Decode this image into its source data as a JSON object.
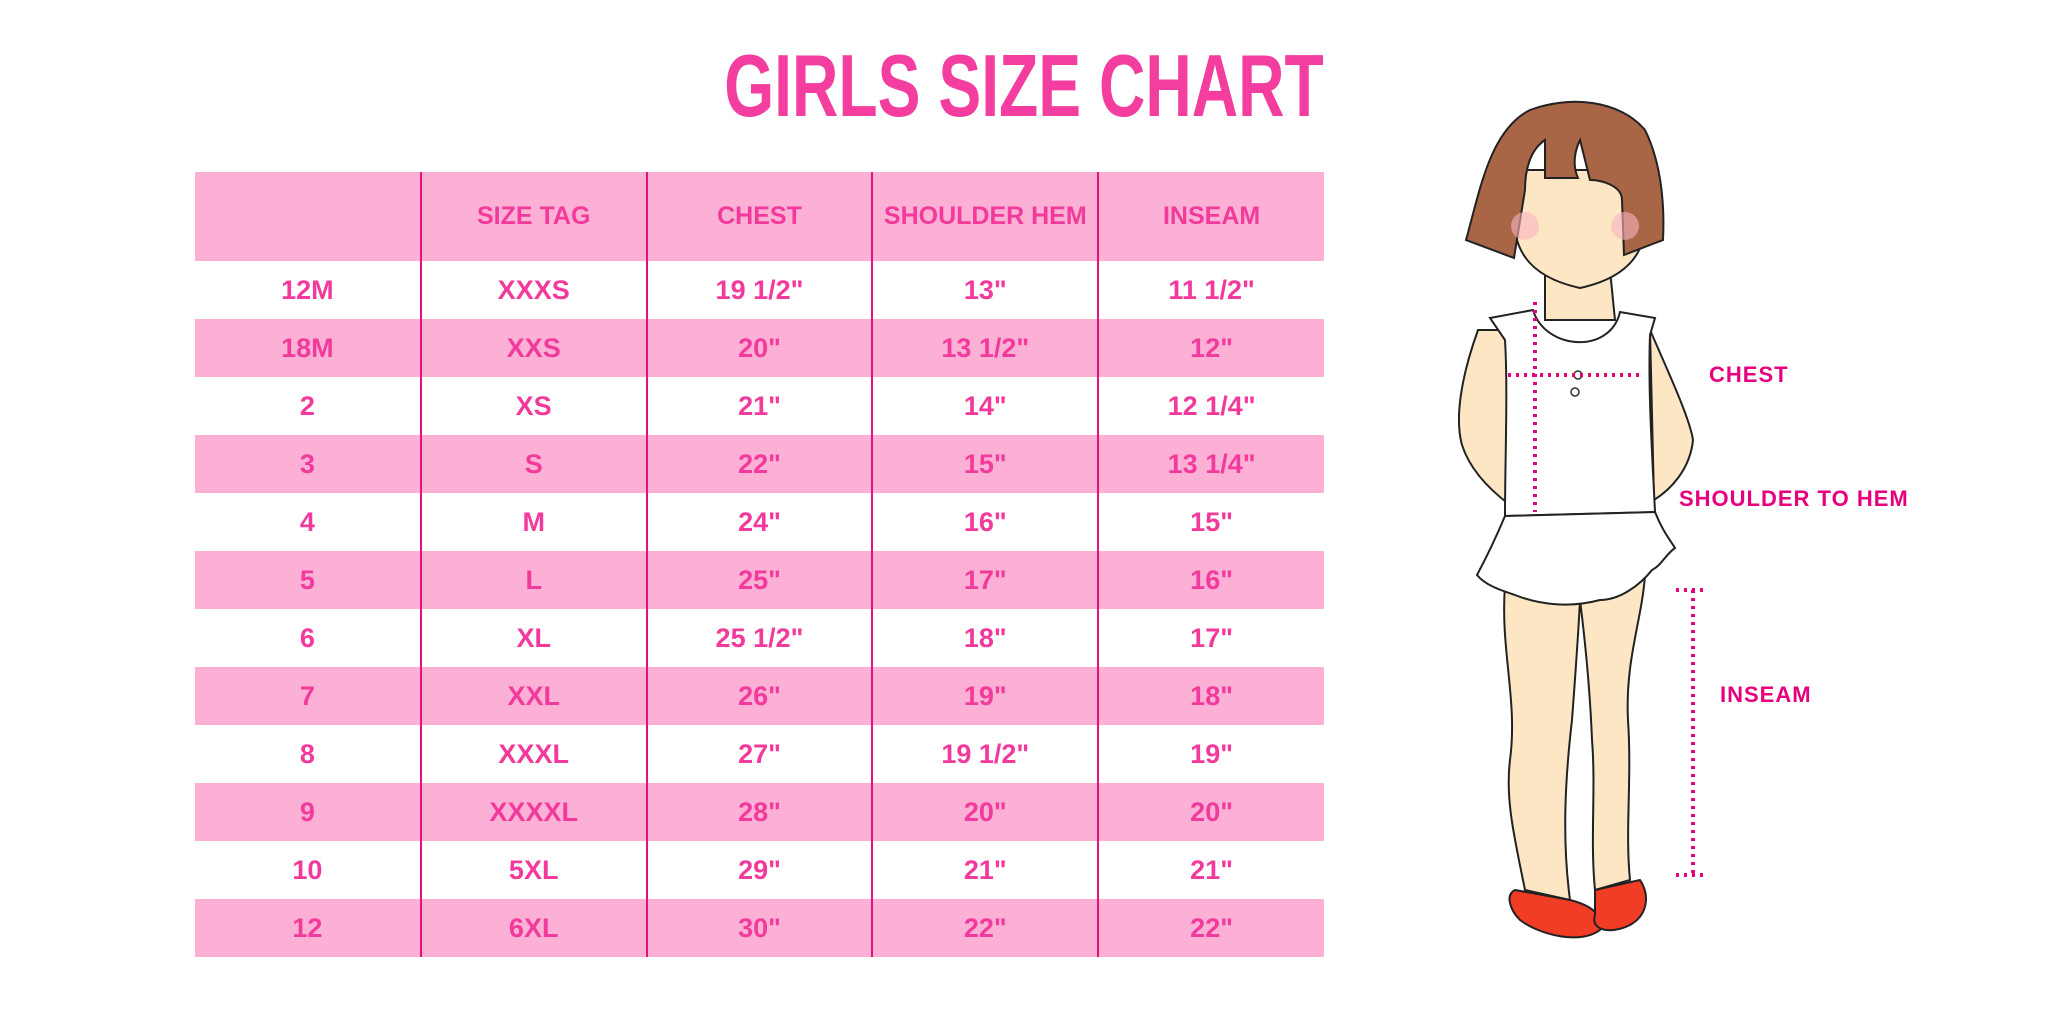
{
  "title": "GIRLS SIZE CHART",
  "colors": {
    "accent": "#f2399c",
    "row_pink": "#fdb0d6",
    "divider": "#e6117f",
    "label": "#e6007e"
  },
  "table": {
    "headers": [
      "",
      "SIZE TAG",
      "CHEST",
      "SHOULDER HEM",
      "INSEAM"
    ],
    "rows": [
      [
        "12M",
        "XXXS",
        "19 1/2\"",
        "13\"",
        "11 1/2\""
      ],
      [
        "18M",
        "XXS",
        "20\"",
        "13 1/2\"",
        "12\""
      ],
      [
        "2",
        "XS",
        "21\"",
        "14\"",
        "12 1/4\""
      ],
      [
        "3",
        "S",
        "22\"",
        "15\"",
        "13 1/4\""
      ],
      [
        "4",
        "M",
        "24\"",
        "16\"",
        "15\""
      ],
      [
        "5",
        "L",
        "25\"",
        "17\"",
        "16\""
      ],
      [
        "6",
        "XL",
        "25 1/2\"",
        "18\"",
        "17\""
      ],
      [
        "7",
        "XXL",
        "26\"",
        "19\"",
        "18\""
      ],
      [
        "8",
        "XXXL",
        "27\"",
        "19 1/2\"",
        "19\""
      ],
      [
        "9",
        "XXXXL",
        "28\"",
        "20\"",
        "20\""
      ],
      [
        "10",
        "5XL",
        "29\"",
        "21\"",
        "21\""
      ],
      [
        "12",
        "6XL",
        "30\"",
        "22\"",
        "22\""
      ]
    ]
  },
  "diagram": {
    "chest_label": "CHEST",
    "shoulder_label": "SHOULDER TO HEM",
    "inseam_label": "INSEAM"
  }
}
